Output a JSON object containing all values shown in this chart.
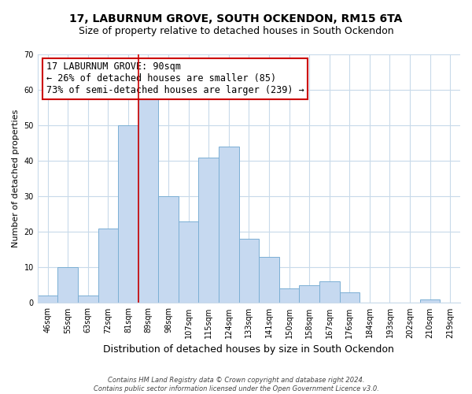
{
  "title": "17, LABURNUM GROVE, SOUTH OCKENDON, RM15 6TA",
  "subtitle": "Size of property relative to detached houses in South Ockendon",
  "xlabel": "Distribution of detached houses by size in South Ockendon",
  "ylabel": "Number of detached properties",
  "bin_labels": [
    "46sqm",
    "55sqm",
    "63sqm",
    "72sqm",
    "81sqm",
    "89sqm",
    "98sqm",
    "107sqm",
    "115sqm",
    "124sqm",
    "133sqm",
    "141sqm",
    "150sqm",
    "158sqm",
    "167sqm",
    "176sqm",
    "184sqm",
    "193sqm",
    "202sqm",
    "210sqm",
    "219sqm"
  ],
  "bar_heights": [
    2,
    10,
    2,
    21,
    50,
    58,
    30,
    23,
    41,
    44,
    18,
    13,
    4,
    5,
    6,
    3,
    0,
    0,
    0,
    1,
    0
  ],
  "bar_color": "#c6d9f0",
  "bar_edge_color": "#7bafd4",
  "highlight_line_color": "#cc0000",
  "ylim": [
    0,
    70
  ],
  "yticks": [
    0,
    10,
    20,
    30,
    40,
    50,
    60,
    70
  ],
  "annotation_title": "17 LABURNUM GROVE: 90sqm",
  "annotation_line1": "← 26% of detached houses are smaller (85)",
  "annotation_line2": "73% of semi-detached houses are larger (239) →",
  "annotation_box_color": "#ffffff",
  "annotation_border_color": "#cc0000",
  "footer_line1": "Contains HM Land Registry data © Crown copyright and database right 2024.",
  "footer_line2": "Contains public sector information licensed under the Open Government Licence v3.0.",
  "title_fontsize": 10,
  "subtitle_fontsize": 9,
  "xlabel_fontsize": 9,
  "ylabel_fontsize": 8,
  "tick_fontsize": 7,
  "annotation_fontsize": 8.5,
  "footer_fontsize": 6
}
